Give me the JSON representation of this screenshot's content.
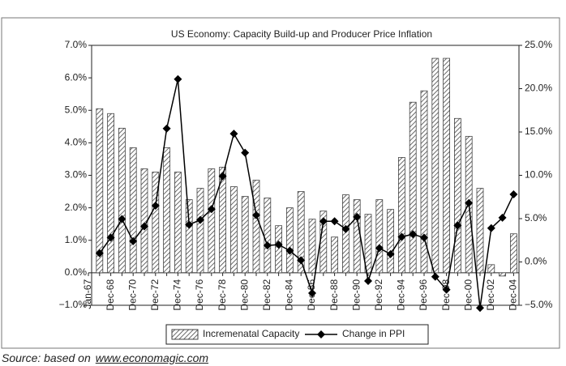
{
  "chart_data": {
    "type": "bar-line",
    "title": "US Economy: Capacity Build-up and Producer Price Inflation",
    "categories": [
      "Jan-67",
      null,
      "Dec-68",
      null,
      "Dec-70",
      null,
      "Dec-72",
      null,
      "Dec-74",
      null,
      "Dec-76",
      null,
      "Dec-78",
      null,
      "Dec-80",
      null,
      "Dec-82",
      null,
      "Dec-84",
      null,
      "Dec-86",
      null,
      "Dec-88",
      null,
      "Dec-90",
      null,
      "Dec-92",
      null,
      "Dec-94",
      null,
      "Dec-96",
      null,
      "Dec-98",
      null,
      "Dec-00",
      null,
      "Dec-02",
      null,
      "Dec-04"
    ],
    "series": [
      {
        "name": "Incremenatal Capacity",
        "type": "bar",
        "color": "#444444",
        "values": [
          null,
          5.05,
          4.9,
          4.45,
          3.85,
          3.2,
          3.1,
          3.85,
          3.1,
          2.25,
          2.6,
          3.2,
          3.25,
          2.65,
          2.35,
          2.85,
          2.3,
          1.45,
          2.0,
          2.5,
          1.65,
          1.9,
          1.1,
          2.4,
          2.25,
          1.8,
          2.25,
          1.95,
          3.55,
          5.25,
          5.6,
          6.6,
          6.6,
          4.75,
          4.2,
          2.6,
          0.25,
          -0.1,
          1.2
        ]
      },
      {
        "name": "Change in PPI",
        "type": "line",
        "axis": "y2",
        "color": "#000000",
        "values": [
          null,
          1.0,
          2.8,
          4.95,
          2.4,
          4.1,
          6.5,
          15.4,
          21.1,
          4.3,
          4.85,
          6.1,
          9.9,
          14.8,
          12.6,
          5.4,
          1.9,
          2.0,
          1.3,
          0.2,
          -3.6,
          4.7,
          4.7,
          3.8,
          5.2,
          -2.2,
          1.6,
          0.9,
          2.9,
          3.2,
          2.8,
          -1.7,
          -3.2,
          4.2,
          6.8,
          -5.3,
          3.9,
          5.1,
          7.8
        ]
      }
    ],
    "ylim": [
      -1,
      7
    ],
    "yticks": [
      {
        "value": -1,
        "label": "−1.0%"
      },
      {
        "value": 0,
        "label": "0.0%"
      },
      {
        "value": 1,
        "label": "1.0%"
      },
      {
        "value": 2,
        "label": "2.0%"
      },
      {
        "value": 3,
        "label": "3.0%"
      },
      {
        "value": 4,
        "label": "4.0%"
      },
      {
        "value": 5,
        "label": "5.0%"
      },
      {
        "value": 6,
        "label": "6.0%"
      },
      {
        "value": 7,
        "label": "7.0%"
      }
    ],
    "y2lim": [
      -5,
      25
    ],
    "y2ticks": [
      {
        "value": -5,
        "label": "−5.0%"
      },
      {
        "value": 0,
        "label": "0.0%"
      },
      {
        "value": 5,
        "label": "5.0%"
      },
      {
        "value": 10,
        "label": "10.0%"
      },
      {
        "value": 15,
        "label": "15.0%"
      },
      {
        "value": 20,
        "label": "20.0%"
      },
      {
        "value": 25,
        "label": "25.0%"
      }
    ],
    "grid": false,
    "legend": "bottom",
    "source": {
      "label": "Source:",
      "text": "based on",
      "link": "www.economagic.com"
    }
  }
}
